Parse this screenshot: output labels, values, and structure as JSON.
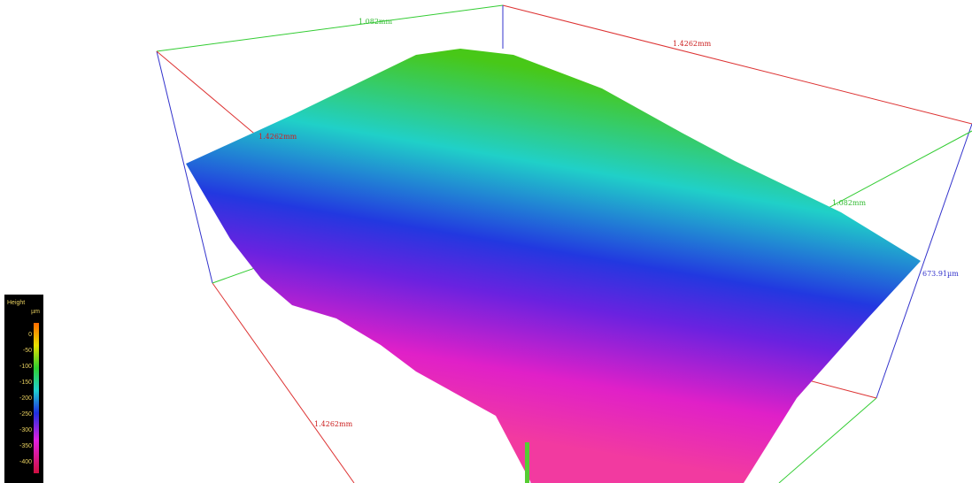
{
  "box_labels": {
    "top_back": "1.082mm",
    "top_right": "1.4262mm",
    "left_back": "1.4262mm",
    "right_mid": "1.082mm",
    "height": "673.91µm",
    "front_left": "1.4262mm"
  },
  "colorbar": {
    "title": "Height",
    "unit": "µm",
    "ticks": [
      0,
      -50,
      -100,
      -150,
      -200,
      -250,
      -300,
      -350,
      -400
    ]
  }
}
